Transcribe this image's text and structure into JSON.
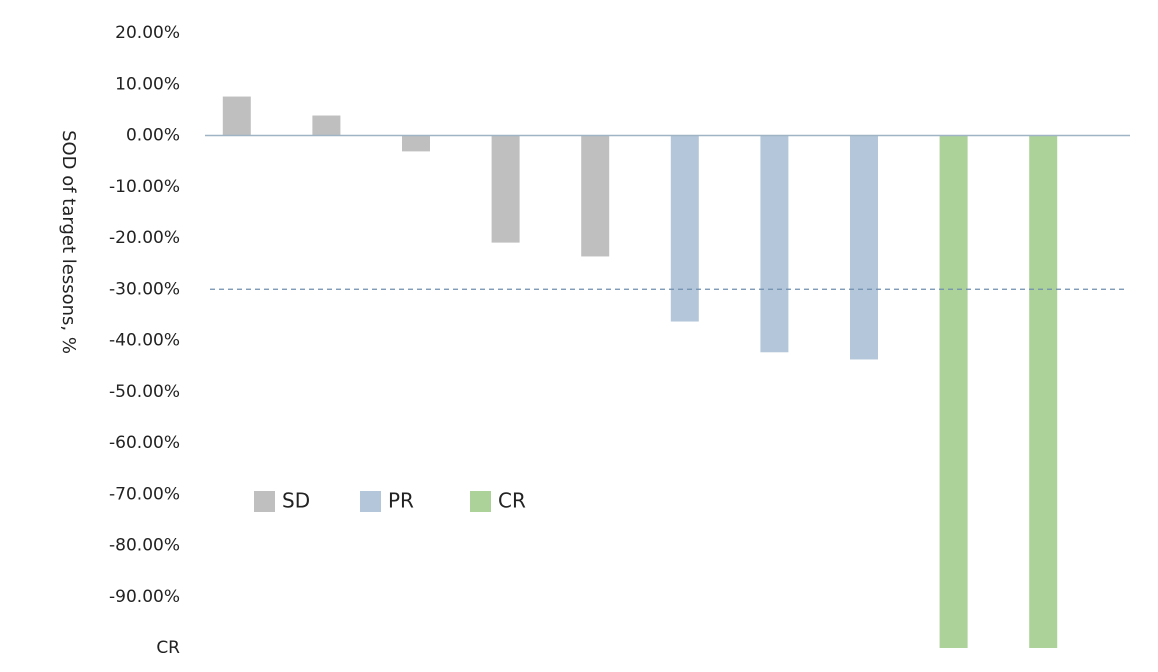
{
  "chart_data": {
    "type": "bar",
    "y_label": "SOD of target lessons, %",
    "categories": [
      null,
      null,
      null,
      null,
      null,
      null,
      null,
      null,
      null,
      null
    ],
    "series": [
      {
        "name": "SD",
        "color": "#bfbfbf",
        "values": [
          7.6,
          3.9,
          -3.1,
          -20.9,
          -23.6,
          null,
          null,
          null,
          null,
          null
        ]
      },
      {
        "name": "PR",
        "color": "#b4c7da",
        "values": [
          null,
          null,
          null,
          null,
          null,
          -36.3,
          -42.3,
          -43.7,
          null,
          null
        ]
      },
      {
        "name": "CR",
        "color": "#acd29a",
        "values": [
          null,
          null,
          null,
          null,
          null,
          null,
          null,
          null,
          -100,
          -100
        ]
      }
    ],
    "threshold": -30,
    "threshold_color": "#6f8faf",
    "ylim": [
      -100,
      20
    ],
    "yticks": [
      {
        "value": 20,
        "label": "20.00%"
      },
      {
        "value": 10,
        "label": "10.00%"
      },
      {
        "value": 0,
        "label": "0.00%"
      },
      {
        "value": -10,
        "label": "-10.00%"
      },
      {
        "value": -20,
        "label": "-20.00%"
      },
      {
        "value": -30,
        "label": "-30.00%"
      },
      {
        "value": -40,
        "label": "-40.00%"
      },
      {
        "value": -50,
        "label": "-50.00%"
      },
      {
        "value": -60,
        "label": "-60.00%"
      },
      {
        "value": -70,
        "label": "-70.00%"
      },
      {
        "value": -80,
        "label": "-80.00%"
      },
      {
        "value": -90,
        "label": "-90.00%"
      },
      {
        "value": -100,
        "label": "CR"
      }
    ],
    "legend": "lower-left"
  }
}
